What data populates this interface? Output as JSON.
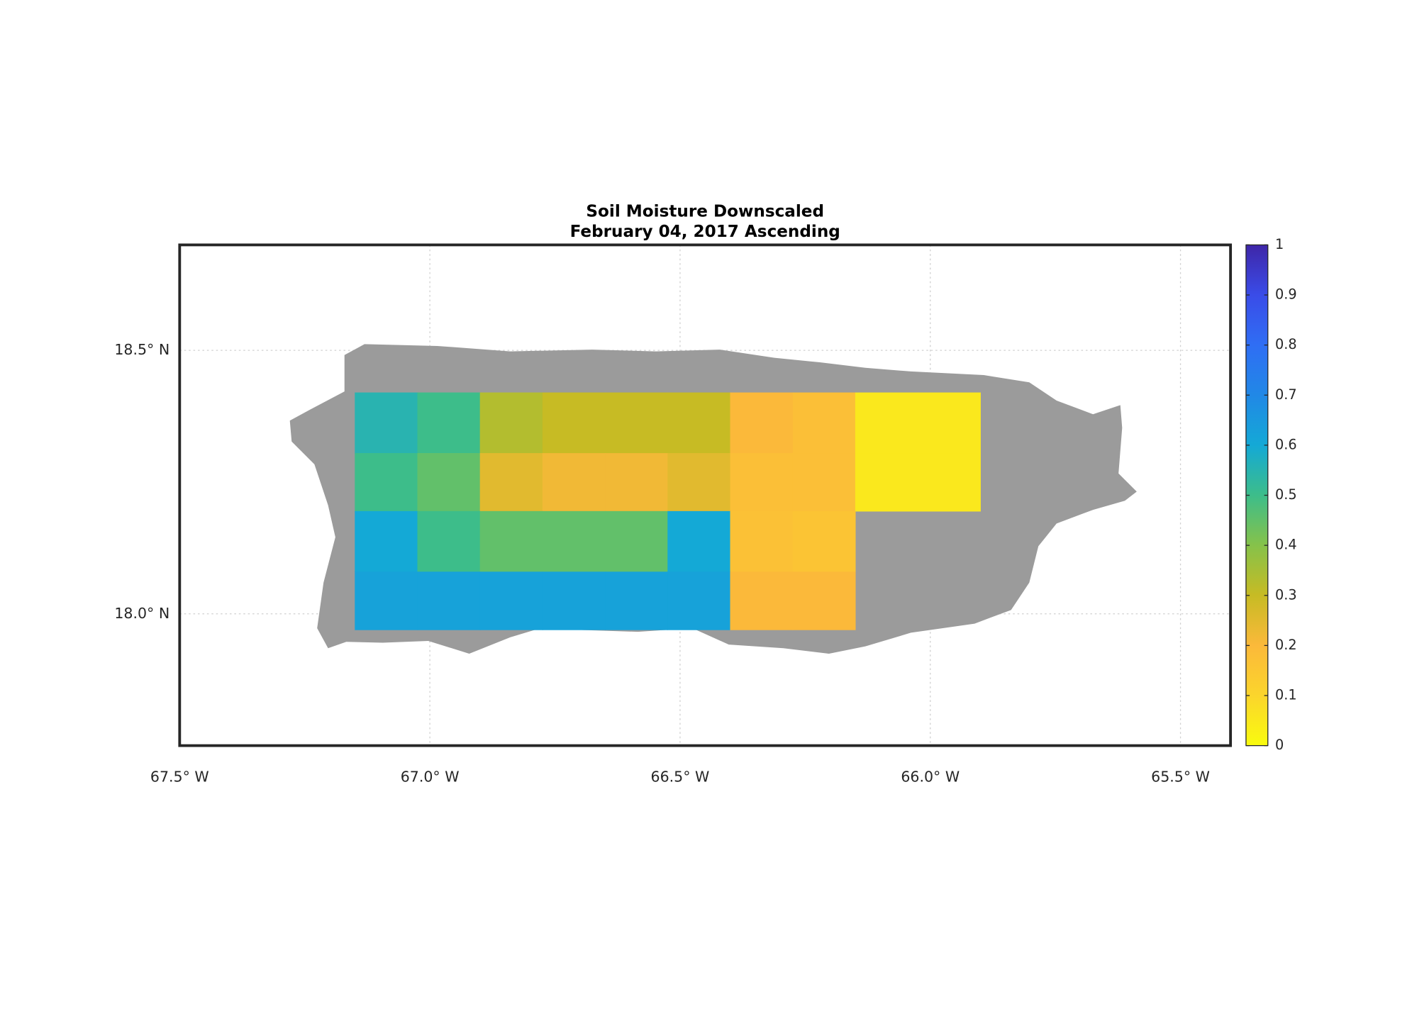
{
  "chart_data": {
    "type": "heatmap",
    "title": "Soil Moisture Downscaled",
    "subtitle": "February 04, 2017 Ascending",
    "xlim": [
      -67.5,
      -65.4
    ],
    "ylim": [
      17.75,
      18.7
    ],
    "xticks": [
      {
        "value": -67.5,
        "label": "67.5° W"
      },
      {
        "value": -67.0,
        "label": "67.0° W"
      },
      {
        "value": -66.5,
        "label": "66.5° W"
      },
      {
        "value": -66.0,
        "label": "66.0° W"
      },
      {
        "value": -65.5,
        "label": "65.5° W"
      }
    ],
    "yticks": [
      {
        "value": 18.0,
        "label": "18.0° N"
      },
      {
        "value": 18.5,
        "label": "18.5° N"
      }
    ],
    "grid": true,
    "xbins": [
      -67.15,
      -67.025,
      -66.9,
      -66.775,
      -66.65,
      -66.525,
      -66.4,
      -66.275,
      -66.15,
      -66.025,
      -65.9
    ],
    "ybins": [
      18.42,
      18.305,
      18.195,
      18.08,
      17.97
    ],
    "values": [
      [
        0.55,
        0.5,
        0.33,
        0.3,
        0.3,
        0.3,
        0.2,
        0.18,
        0.05,
        0.05
      ],
      [
        0.5,
        0.45,
        0.25,
        0.22,
        0.22,
        0.25,
        0.18,
        0.18,
        0.05,
        0.05
      ],
      [
        0.6,
        0.5,
        0.45,
        0.45,
        0.45,
        0.6,
        0.17,
        0.16,
        null,
        null
      ],
      [
        0.62,
        0.62,
        0.62,
        0.62,
        0.62,
        0.62,
        0.2,
        0.2,
        null,
        null
      ]
    ],
    "clim": [
      0,
      1
    ],
    "cticks": [
      0,
      0.1,
      0.2,
      0.3,
      0.4,
      0.5,
      0.6,
      0.7,
      0.8,
      0.9,
      1
    ],
    "colormap": [
      "#f9fb0e",
      "#fbd52c",
      "#fbb93a",
      "#c7bb24",
      "#86c24a",
      "#3dbd8a",
      "#14a9d6",
      "#2188e6",
      "#2f6ef4",
      "#3a4ce8",
      "#3e26a8"
    ],
    "land_color": "#9b9b9b"
  }
}
